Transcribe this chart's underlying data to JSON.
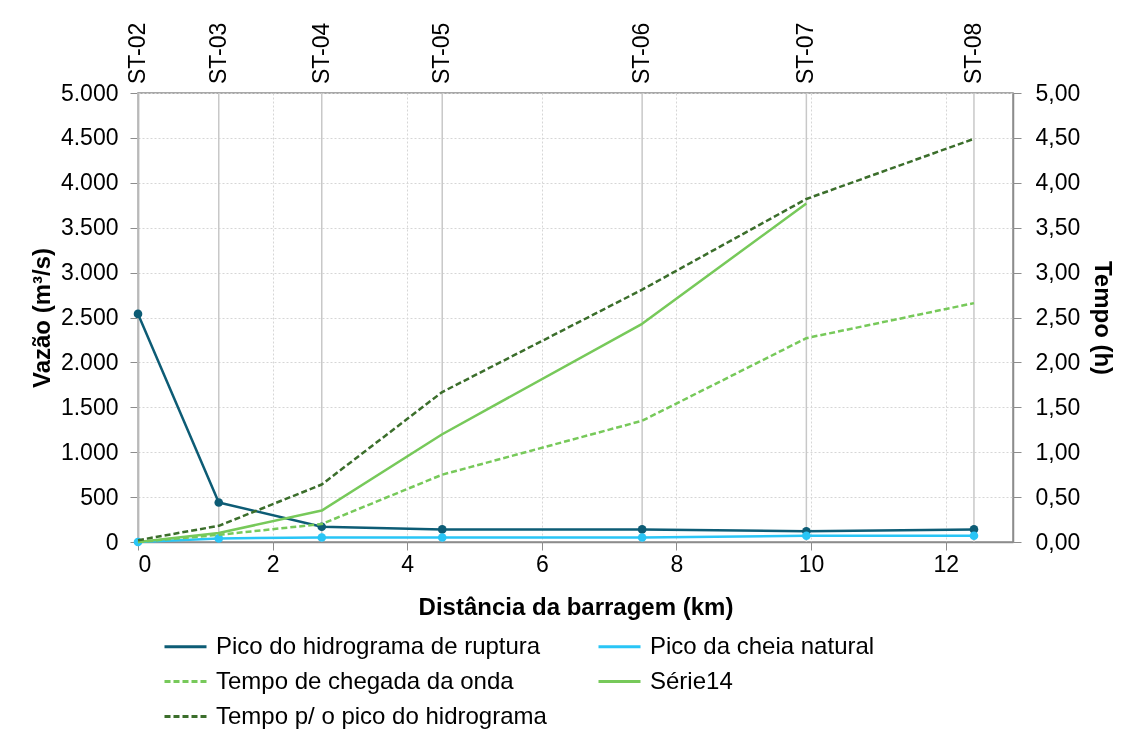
{
  "chart_data": {
    "type": "line",
    "xlabel": "Distância da barragem (km)",
    "ylabel": "Vazão (m³/s)",
    "y2label": "Tempo (h)",
    "x": [
      0,
      1.2,
      2.73,
      4.52,
      7.49,
      9.93,
      12.42
    ],
    "xlim": [
      0,
      13
    ],
    "xticks": [
      0,
      2,
      4,
      6,
      8,
      10,
      12
    ],
    "ylim": [
      0,
      5000
    ],
    "yticks": [
      0,
      500,
      {
        "value": 1000,
        "label": "1.000"
      },
      {
        "value": 1500,
        "label": "1.500"
      },
      {
        "value": 2000,
        "label": "2.000"
      },
      {
        "value": 2500,
        "label": "2.500"
      },
      {
        "value": 3000,
        "label": "3.000"
      },
      {
        "value": 3500,
        "label": "3.500"
      },
      {
        "value": 4000,
        "label": "4.000"
      },
      {
        "value": 4500,
        "label": "4.500"
      },
      {
        "value": 5000,
        "label": "5.000"
      }
    ],
    "y2lim": [
      0,
      5
    ],
    "y2ticks": [
      {
        "value": 0,
        "label": "0,00"
      },
      {
        "value": 0.5,
        "label": "0,50"
      },
      {
        "value": 1,
        "label": "1,00"
      },
      {
        "value": 1.5,
        "label": "1,50"
      },
      {
        "value": 2,
        "label": "2,00"
      },
      {
        "value": 2.5,
        "label": "2,50"
      },
      {
        "value": 3,
        "label": "3,00"
      },
      {
        "value": 3.5,
        "label": "3,50"
      },
      {
        "value": 4,
        "label": "4,00"
      },
      {
        "value": 4.5,
        "label": "4,50"
      },
      {
        "value": 5,
        "label": "5,00"
      }
    ],
    "grid": true,
    "legend": "bottom",
    "ref_lines": [
      {
        "axis": "x",
        "value": 0,
        "label": "ST-02",
        "color": "#c8c8c8"
      },
      {
        "axis": "x",
        "value": 1.2,
        "label": "ST-03",
        "color": "#c8c8c8"
      },
      {
        "axis": "x",
        "value": 2.73,
        "label": "ST-04",
        "color": "#c8c8c8"
      },
      {
        "axis": "x",
        "value": 4.52,
        "label": "ST-05",
        "color": "#c8c8c8"
      },
      {
        "axis": "x",
        "value": 7.49,
        "label": "ST-06",
        "color": "#c8c8c8"
      },
      {
        "axis": "x",
        "value": 9.93,
        "label": "ST-07",
        "color": "#c8c8c8"
      },
      {
        "axis": "x",
        "value": 12.42,
        "label": "ST-08",
        "color": "#c8c8c8"
      }
    ],
    "series": [
      {
        "name": "Pico do hidrograma de ruptura",
        "color": "#0d5c75",
        "marker": "circle",
        "line_style": "solid",
        "values": [
          2540,
          440,
          170,
          140,
          140,
          120,
          140
        ]
      },
      {
        "name": "Pico da cheia natural",
        "color": "#29c5f6",
        "marker": "circle",
        "line_style": "solid",
        "values": [
          0,
          40,
          50,
          50,
          50,
          70,
          70
        ]
      },
      {
        "name": "Tempo de chegada da onda",
        "color": "#77c95a",
        "marker": "none",
        "line_style": "dashed",
        "axis": "y2",
        "values": [
          0,
          0.08,
          0.2,
          0.75,
          1.35,
          2.27,
          2.66
        ]
      },
      {
        "name": "Série14",
        "color": "#77c95a",
        "marker": "none",
        "line_style": "solid",
        "axis": "y2",
        "values": [
          0,
          0.1,
          0.35,
          1.2,
          2.43,
          3.77,
          null
        ]
      },
      {
        "name": "Tempo p/ o pico do hidrograma",
        "color": "#3b6e2b",
        "marker": "none",
        "line_style": "dashed",
        "axis": "y2",
        "values": [
          0.02,
          0.18,
          0.64,
          1.67,
          2.81,
          3.82,
          4.49
        ]
      }
    ]
  }
}
